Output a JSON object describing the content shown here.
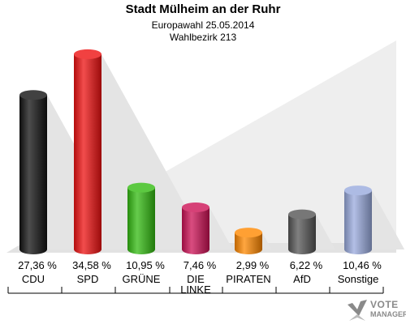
{
  "chart_data": {
    "type": "bar",
    "title": "Stadt Mülheim an der Ruhr",
    "subtitles": [
      "Europawahl 25.05.2014",
      "Wahlbezirk 213"
    ],
    "categories": [
      "CDU",
      "SPD",
      "GRÜNE",
      "DIE LINKE",
      "PIRATEN",
      "AfD",
      "Sonstige"
    ],
    "values": [
      27.36,
      34.58,
      10.95,
      7.46,
      2.99,
      6.22,
      10.46
    ],
    "value_labels": [
      "27,36 %",
      "34,58 %",
      "10,95 %",
      "7,46 %",
      "2,99 %",
      "6,22 %",
      "10,46 %"
    ],
    "colors": [
      "#111111",
      "#ee1111",
      "#33bb11",
      "#cc1155",
      "#ff8800",
      "#555555",
      "#99aadd"
    ],
    "ylim": [
      0,
      35
    ],
    "grid": false,
    "legend": "none"
  },
  "branding": {
    "line1": "VOTE",
    "line2": "MANAGER"
  }
}
